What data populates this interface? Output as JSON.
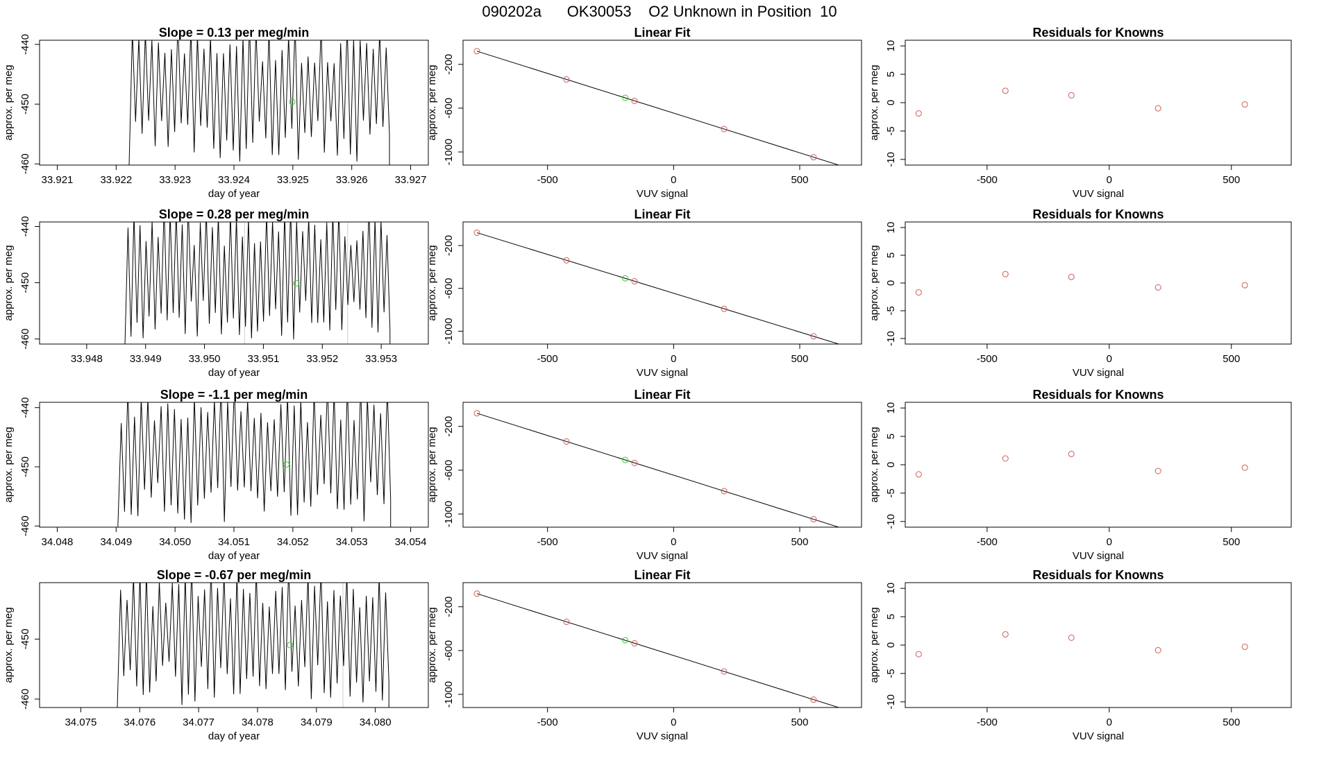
{
  "figure_title": "090202a      OK30053    O2 Unknown in Position  10",
  "colors": {
    "line": "#000000",
    "known_point": "#cd5c5c",
    "unknown_point": "#33cc33",
    "frame": "#000000",
    "flag_line": "#cccccc"
  },
  "chart_data": [
    {
      "id": "r1-ts",
      "type": "line",
      "title": "Slope =  0.13  per meg/min",
      "xlabel": "day of year",
      "ylabel": "approx. per meg",
      "xlim": [
        33.9207,
        33.9273
      ],
      "ylim": [
        -460.2,
        -439.3
      ],
      "xticks": [
        33.921,
        33.922,
        33.923,
        33.924,
        33.925,
        33.926,
        33.927
      ],
      "xtick_labels": [
        "33.921",
        "33.922",
        "33.923",
        "33.924",
        "33.925",
        "33.926",
        "33.927"
      ],
      "yticks": [
        -440,
        -450,
        -460
      ],
      "ytick_labels": [
        "-440",
        "-450",
        "-460"
      ],
      "trace_start": 33.92222,
      "trace_end": 33.92664,
      "trace_cycles": 40,
      "trace_seed": 3,
      "unknown_point": {
        "x": 33.92499,
        "y": -449.6
      },
      "flag_lines": []
    },
    {
      "id": "r1-fit",
      "type": "scatter",
      "title": "Linear Fit",
      "xlabel": "VUV signal",
      "ylabel": "approx. per meg",
      "xlim": [
        -835,
        745
      ],
      "ylim": [
        -1120,
        20
      ],
      "xticks": [
        -500,
        0,
        500
      ],
      "xtick_labels": [
        "-500",
        "0",
        "500"
      ],
      "yticks": [
        -200,
        -600,
        -1000
      ],
      "ytick_labels": [
        "-200",
        "-600",
        "-1000"
      ],
      "points": [
        {
          "x": -780,
          "y": -80
        },
        {
          "x": -425,
          "y": -338
        },
        {
          "x": -155,
          "y": -534
        },
        {
          "x": 200,
          "y": -791
        },
        {
          "x": 555,
          "y": -1048
        }
      ],
      "unknown_point": {
        "x": -192,
        "y": -506
      },
      "fit_line": {
        "x": [
          -780,
          700
        ],
        "y": [
          -80,
          -1153
        ]
      }
    },
    {
      "id": "r1-res",
      "type": "scatter",
      "title": "Residuals for Knowns",
      "xlabel": "VUV signal",
      "ylabel": "approx. per meg",
      "xlim": [
        -835,
        745
      ],
      "ylim": [
        -11,
        11
      ],
      "xticks": [
        -500,
        0,
        500
      ],
      "xtick_labels": [
        "-500",
        "0",
        "500"
      ],
      "yticks": [
        10,
        5,
        0,
        -5,
        -10
      ],
      "ytick_labels": [
        "10",
        "5",
        "0",
        "-5",
        "-10"
      ],
      "points": [
        {
          "x": -780,
          "y": -1.9
        },
        {
          "x": -425,
          "y": 2.1
        },
        {
          "x": -155,
          "y": 1.3
        },
        {
          "x": 200,
          "y": -1.0
        },
        {
          "x": 555,
          "y": -0.3
        }
      ]
    },
    {
      "id": "r2-ts",
      "type": "line",
      "title": "Slope =  0.28  per meg/min",
      "xlabel": "day of year",
      "ylabel": "approx. per meg",
      "xlim": [
        33.9472,
        33.9538
      ],
      "ylim": [
        -460.9,
        -439.2
      ],
      "xticks": [
        33.948,
        33.949,
        33.95,
        33.951,
        33.952,
        33.953
      ],
      "xtick_labels": [
        "33.948",
        "33.949",
        "33.950",
        "33.951",
        "33.952",
        "33.953"
      ],
      "yticks": [
        -440,
        -450,
        -460
      ],
      "ytick_labels": [
        "-440",
        "-450",
        "-460"
      ],
      "trace_start": 33.94865,
      "trace_end": 33.95315,
      "trace_cycles": 44,
      "trace_seed": 7,
      "unknown_point": {
        "x": 33.95156,
        "y": -450.1
      },
      "flag_lines": [
        33.95068,
        33.95243
      ]
    },
    {
      "id": "r2-fit",
      "type": "scatter",
      "title": "Linear Fit",
      "xlabel": "VUV signal",
      "ylabel": "approx. per meg",
      "xlim": [
        -835,
        745
      ],
      "ylim": [
        -1120,
        20
      ],
      "xticks": [
        -500,
        0,
        500
      ],
      "xtick_labels": [
        "-500",
        "0",
        "500"
      ],
      "yticks": [
        -200,
        -600,
        -1000
      ],
      "ytick_labels": [
        "-200",
        "-600",
        "-1000"
      ],
      "points": [
        {
          "x": -780,
          "y": -80
        },
        {
          "x": -425,
          "y": -338
        },
        {
          "x": -155,
          "y": -534
        },
        {
          "x": 200,
          "y": -791
        },
        {
          "x": 555,
          "y": -1048
        }
      ],
      "unknown_point": {
        "x": -192,
        "y": -506
      },
      "fit_line": {
        "x": [
          -780,
          700
        ],
        "y": [
          -80,
          -1153
        ]
      }
    },
    {
      "id": "r2-res",
      "type": "scatter",
      "title": "Residuals for Knowns",
      "xlabel": "VUV signal",
      "ylabel": "approx. per meg",
      "xlim": [
        -835,
        745
      ],
      "ylim": [
        -11,
        11
      ],
      "xticks": [
        -500,
        0,
        500
      ],
      "xtick_labels": [
        "-500",
        "0",
        "500"
      ],
      "yticks": [
        10,
        5,
        0,
        -5,
        -10
      ],
      "ytick_labels": [
        "10",
        "5",
        "0",
        "-5",
        "-10"
      ],
      "points": [
        {
          "x": -780,
          "y": -1.7
        },
        {
          "x": -425,
          "y": 1.6
        },
        {
          "x": -155,
          "y": 1.1
        },
        {
          "x": 200,
          "y": -0.8
        },
        {
          "x": 555,
          "y": -0.4
        }
      ]
    },
    {
      "id": "r3-ts",
      "type": "line",
      "title": "Slope =  -1.1  per meg/min",
      "xlabel": "day of year",
      "ylabel": "approx. per meg",
      "xlim": [
        34.0477,
        34.0543
      ],
      "ylim": [
        -460.2,
        -439.1
      ],
      "xticks": [
        34.048,
        34.049,
        34.05,
        34.051,
        34.052,
        34.053,
        34.054
      ],
      "xtick_labels": [
        "34.048",
        "34.049",
        "34.050",
        "34.051",
        "34.052",
        "34.053",
        "34.054"
      ],
      "yticks": [
        -440,
        -450,
        -460
      ],
      "ytick_labels": [
        "-440",
        "-450",
        "-460"
      ],
      "trace_start": 34.04903,
      "trace_end": 34.05366,
      "trace_cycles": 41,
      "trace_seed": 11,
      "unknown_point": {
        "x": 34.05189,
        "y": -449.6
      },
      "flag_lines": []
    },
    {
      "id": "r3-fit",
      "type": "scatter",
      "title": "Linear Fit",
      "xlabel": "VUV signal",
      "ylabel": "approx. per meg",
      "xlim": [
        -835,
        745
      ],
      "ylim": [
        -1120,
        20
      ],
      "xticks": [
        -500,
        0,
        500
      ],
      "xtick_labels": [
        "-500",
        "0",
        "500"
      ],
      "yticks": [
        -200,
        -600,
        -1000
      ],
      "ytick_labels": [
        "-200",
        "-600",
        "-1000"
      ],
      "points": [
        {
          "x": -780,
          "y": -80
        },
        {
          "x": -425,
          "y": -338
        },
        {
          "x": -155,
          "y": -534
        },
        {
          "x": 200,
          "y": -791
        },
        {
          "x": 555,
          "y": -1048
        }
      ],
      "unknown_point": {
        "x": -192,
        "y": -506
      },
      "fit_line": {
        "x": [
          -780,
          700
        ],
        "y": [
          -80,
          -1153
        ]
      }
    },
    {
      "id": "r3-res",
      "type": "scatter",
      "title": "Residuals for Knowns",
      "xlabel": "VUV signal",
      "ylabel": "approx. per meg",
      "xlim": [
        -835,
        745
      ],
      "ylim": [
        -11,
        11
      ],
      "xticks": [
        -500,
        0,
        500
      ],
      "xtick_labels": [
        "-500",
        "0",
        "500"
      ],
      "yticks": [
        10,
        5,
        0,
        -5,
        -10
      ],
      "ytick_labels": [
        "10",
        "5",
        "0",
        "-5",
        "-10"
      ],
      "points": [
        {
          "x": -780,
          "y": -1.7
        },
        {
          "x": -425,
          "y": 1.1
        },
        {
          "x": -155,
          "y": 1.9
        },
        {
          "x": 200,
          "y": -1.1
        },
        {
          "x": 555,
          "y": -0.5
        }
      ]
    },
    {
      "id": "r4-ts",
      "type": "line",
      "title": "Slope =  -0.67  per meg/min",
      "xlabel": "day of year",
      "ylabel": "approx. per meg",
      "xlim": [
        34.0743,
        34.0809
      ],
      "ylim": [
        -461.4,
        -440.6
      ],
      "xticks": [
        34.075,
        34.076,
        34.077,
        34.078,
        34.079,
        34.08
      ],
      "xtick_labels": [
        "34.075",
        "34.076",
        "34.077",
        "34.078",
        "34.079",
        "34.080"
      ],
      "yticks": [
        -450,
        -460
      ],
      "ytick_labels": [
        "-450",
        "-460"
      ],
      "trace_start": 34.07562,
      "trace_end": 34.08023,
      "trace_cycles": 42,
      "trace_seed": 19,
      "unknown_point": {
        "x": 34.07855,
        "y": -451.0
      },
      "flag_lines": [
        34.07945
      ]
    },
    {
      "id": "r4-fit",
      "type": "scatter",
      "title": "Linear Fit",
      "xlabel": "VUV signal",
      "ylabel": "approx. per meg",
      "xlim": [
        -835,
        745
      ],
      "ylim": [
        -1120,
        20
      ],
      "xticks": [
        -500,
        0,
        500
      ],
      "xtick_labels": [
        "-500",
        "0",
        "500"
      ],
      "yticks": [
        -200,
        -600,
        -1000
      ],
      "ytick_labels": [
        "-200",
        "-600",
        "-1000"
      ],
      "points": [
        {
          "x": -780,
          "y": -80
        },
        {
          "x": -425,
          "y": -338
        },
        {
          "x": -155,
          "y": -534
        },
        {
          "x": 200,
          "y": -791
        },
        {
          "x": 555,
          "y": -1048
        }
      ],
      "unknown_point": {
        "x": -192,
        "y": -506
      },
      "fit_line": {
        "x": [
          -780,
          700
        ],
        "y": [
          -80,
          -1153
        ]
      }
    },
    {
      "id": "r4-res",
      "type": "scatter",
      "title": "Residuals for Knowns",
      "xlabel": "VUV signal",
      "ylabel": "approx. per meg",
      "xlim": [
        -835,
        745
      ],
      "ylim": [
        -11,
        11
      ],
      "xticks": [
        -500,
        0,
        500
      ],
      "xtick_labels": [
        "-500",
        "0",
        "500"
      ],
      "yticks": [
        10,
        5,
        0,
        -5,
        -10
      ],
      "ytick_labels": [
        "10",
        "5",
        "0",
        "-5",
        "-10"
      ],
      "points": [
        {
          "x": -780,
          "y": -1.6
        },
        {
          "x": -425,
          "y": 1.9
        },
        {
          "x": -155,
          "y": 1.3
        },
        {
          "x": 200,
          "y": -0.9
        },
        {
          "x": 555,
          "y": -0.3
        }
      ]
    }
  ]
}
